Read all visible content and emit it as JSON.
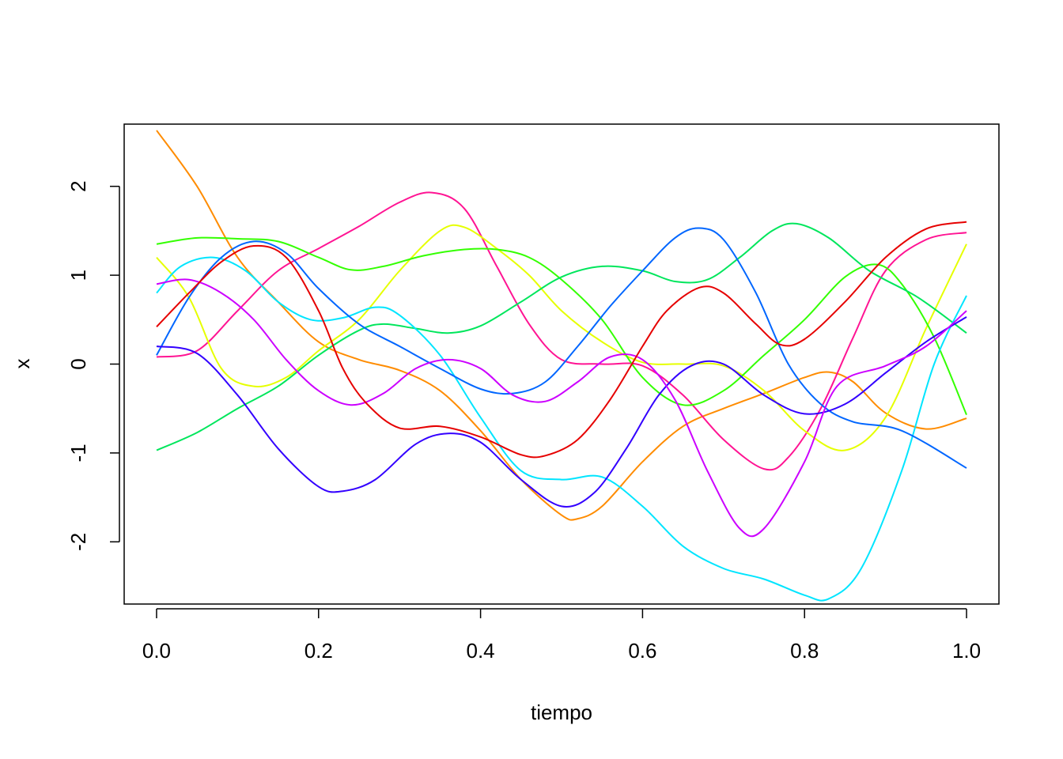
{
  "chart_data": {
    "type": "line",
    "title": "",
    "xlabel": "tiempo",
    "ylabel": "x",
    "xlim": [
      -0.04,
      1.04
    ],
    "ylim": [
      -2.7,
      2.7
    ],
    "x_ticks": [
      0.0,
      0.2,
      0.4,
      0.6,
      0.8,
      1.0
    ],
    "x_tick_labels": [
      "0.0",
      "0.2",
      "0.4",
      "0.6",
      "0.8",
      "1.0"
    ],
    "y_ticks": [
      -2,
      -1,
      0,
      1,
      2
    ],
    "y_tick_labels": [
      "-2",
      "-1",
      "0",
      "1",
      "2"
    ],
    "grid": false,
    "legend": "none",
    "series": [
      {
        "color": "#ff8c00",
        "points": [
          [
            0.0,
            2.63
          ],
          [
            0.05,
            2.0
          ],
          [
            0.1,
            1.2
          ],
          [
            0.15,
            0.7
          ],
          [
            0.2,
            0.25
          ],
          [
            0.25,
            0.05
          ],
          [
            0.3,
            -0.07
          ],
          [
            0.35,
            -0.3
          ],
          [
            0.4,
            -0.75
          ],
          [
            0.45,
            -1.3
          ],
          [
            0.5,
            -1.7
          ],
          [
            0.52,
            -1.74
          ],
          [
            0.55,
            -1.6
          ],
          [
            0.6,
            -1.1
          ],
          [
            0.65,
            -0.7
          ],
          [
            0.7,
            -0.5
          ],
          [
            0.75,
            -0.33
          ],
          [
            0.8,
            -0.15
          ],
          [
            0.83,
            -0.09
          ],
          [
            0.86,
            -0.2
          ],
          [
            0.9,
            -0.55
          ],
          [
            0.95,
            -0.73
          ],
          [
            1.0,
            -0.61
          ]
        ]
      },
      {
        "color": "#ff1493",
        "points": [
          [
            0.0,
            0.08
          ],
          [
            0.05,
            0.15
          ],
          [
            0.1,
            0.6
          ],
          [
            0.15,
            1.05
          ],
          [
            0.2,
            1.3
          ],
          [
            0.25,
            1.55
          ],
          [
            0.3,
            1.82
          ],
          [
            0.34,
            1.93
          ],
          [
            0.38,
            1.75
          ],
          [
            0.42,
            1.1
          ],
          [
            0.46,
            0.45
          ],
          [
            0.5,
            0.05
          ],
          [
            0.55,
            0.0
          ],
          [
            0.6,
            -0.02
          ],
          [
            0.65,
            -0.35
          ],
          [
            0.7,
            -0.85
          ],
          [
            0.75,
            -1.18
          ],
          [
            0.78,
            -1.05
          ],
          [
            0.82,
            -0.5
          ],
          [
            0.86,
            0.3
          ],
          [
            0.9,
            1.05
          ],
          [
            0.95,
            1.4
          ],
          [
            1.0,
            1.48
          ]
        ]
      },
      {
        "color": "#e6ff00",
        "points": [
          [
            0.0,
            1.2
          ],
          [
            0.04,
            0.75
          ],
          [
            0.08,
            -0.05
          ],
          [
            0.12,
            -0.25
          ],
          [
            0.16,
            -0.15
          ],
          [
            0.2,
            0.15
          ],
          [
            0.25,
            0.5
          ],
          [
            0.3,
            1.05
          ],
          [
            0.35,
            1.5
          ],
          [
            0.38,
            1.54
          ],
          [
            0.42,
            1.3
          ],
          [
            0.46,
            1.0
          ],
          [
            0.5,
            0.6
          ],
          [
            0.55,
            0.25
          ],
          [
            0.6,
            0.02
          ],
          [
            0.65,
            0.0
          ],
          [
            0.7,
            -0.02
          ],
          [
            0.75,
            -0.3
          ],
          [
            0.8,
            -0.75
          ],
          [
            0.85,
            -0.97
          ],
          [
            0.9,
            -0.6
          ],
          [
            0.95,
            0.4
          ],
          [
            1.0,
            1.35
          ]
        ]
      },
      {
        "color": "#33ff00",
        "points": [
          [
            0.0,
            1.35
          ],
          [
            0.05,
            1.42
          ],
          [
            0.1,
            1.41
          ],
          [
            0.15,
            1.38
          ],
          [
            0.2,
            1.2
          ],
          [
            0.24,
            1.06
          ],
          [
            0.28,
            1.1
          ],
          [
            0.33,
            1.22
          ],
          [
            0.38,
            1.29
          ],
          [
            0.42,
            1.29
          ],
          [
            0.46,
            1.2
          ],
          [
            0.5,
            0.95
          ],
          [
            0.55,
            0.5
          ],
          [
            0.6,
            -0.15
          ],
          [
            0.65,
            -0.46
          ],
          [
            0.7,
            -0.3
          ],
          [
            0.75,
            0.1
          ],
          [
            0.8,
            0.5
          ],
          [
            0.85,
            0.98
          ],
          [
            0.89,
            1.12
          ],
          [
            0.92,
            0.9
          ],
          [
            0.96,
            0.3
          ],
          [
            1.0,
            -0.57
          ]
        ]
      },
      {
        "color": "#00e65c",
        "points": [
          [
            0.0,
            -0.97
          ],
          [
            0.05,
            -0.77
          ],
          [
            0.1,
            -0.5
          ],
          [
            0.15,
            -0.25
          ],
          [
            0.2,
            0.1
          ],
          [
            0.25,
            0.38
          ],
          [
            0.28,
            0.45
          ],
          [
            0.32,
            0.4
          ],
          [
            0.36,
            0.35
          ],
          [
            0.4,
            0.43
          ],
          [
            0.45,
            0.7
          ],
          [
            0.5,
            0.98
          ],
          [
            0.55,
            1.1
          ],
          [
            0.6,
            1.05
          ],
          [
            0.64,
            0.93
          ],
          [
            0.68,
            0.95
          ],
          [
            0.72,
            1.2
          ],
          [
            0.76,
            1.5
          ],
          [
            0.79,
            1.58
          ],
          [
            0.83,
            1.42
          ],
          [
            0.88,
            1.05
          ],
          [
            0.94,
            0.75
          ],
          [
            1.0,
            0.35
          ]
        ]
      },
      {
        "color": "#00e5ff",
        "points": [
          [
            0.0,
            0.8
          ],
          [
            0.03,
            1.1
          ],
          [
            0.07,
            1.2
          ],
          [
            0.11,
            1.05
          ],
          [
            0.15,
            0.7
          ],
          [
            0.19,
            0.5
          ],
          [
            0.23,
            0.52
          ],
          [
            0.27,
            0.64
          ],
          [
            0.3,
            0.55
          ],
          [
            0.35,
            0.1
          ],
          [
            0.4,
            -0.6
          ],
          [
            0.45,
            -1.2
          ],
          [
            0.5,
            -1.3
          ],
          [
            0.55,
            -1.27
          ],
          [
            0.6,
            -1.6
          ],
          [
            0.65,
            -2.05
          ],
          [
            0.7,
            -2.3
          ],
          [
            0.75,
            -2.42
          ],
          [
            0.8,
            -2.6
          ],
          [
            0.83,
            -2.64
          ],
          [
            0.87,
            -2.3
          ],
          [
            0.92,
            -1.2
          ],
          [
            0.96,
            0.0
          ],
          [
            1.0,
            0.77
          ]
        ]
      },
      {
        "color": "#0066ff",
        "points": [
          [
            0.0,
            0.1
          ],
          [
            0.04,
            0.75
          ],
          [
            0.08,
            1.2
          ],
          [
            0.12,
            1.38
          ],
          [
            0.16,
            1.25
          ],
          [
            0.2,
            0.85
          ],
          [
            0.25,
            0.45
          ],
          [
            0.3,
            0.2
          ],
          [
            0.35,
            -0.05
          ],
          [
            0.4,
            -0.28
          ],
          [
            0.44,
            -0.33
          ],
          [
            0.48,
            -0.2
          ],
          [
            0.52,
            0.2
          ],
          [
            0.56,
            0.65
          ],
          [
            0.6,
            1.05
          ],
          [
            0.64,
            1.42
          ],
          [
            0.67,
            1.53
          ],
          [
            0.7,
            1.4
          ],
          [
            0.74,
            0.8
          ],
          [
            0.78,
            0.0
          ],
          [
            0.82,
            -0.45
          ],
          [
            0.86,
            -0.65
          ],
          [
            0.92,
            -0.75
          ],
          [
            1.0,
            -1.17
          ]
        ]
      },
      {
        "color": "#3300ff",
        "points": [
          [
            0.0,
            0.2
          ],
          [
            0.05,
            0.12
          ],
          [
            0.1,
            -0.35
          ],
          [
            0.15,
            -0.95
          ],
          [
            0.2,
            -1.38
          ],
          [
            0.23,
            -1.43
          ],
          [
            0.27,
            -1.3
          ],
          [
            0.32,
            -0.9
          ],
          [
            0.36,
            -0.78
          ],
          [
            0.4,
            -0.88
          ],
          [
            0.45,
            -1.3
          ],
          [
            0.5,
            -1.6
          ],
          [
            0.54,
            -1.45
          ],
          [
            0.58,
            -0.95
          ],
          [
            0.62,
            -0.35
          ],
          [
            0.66,
            -0.02
          ],
          [
            0.7,
            0.0
          ],
          [
            0.75,
            -0.35
          ],
          [
            0.8,
            -0.56
          ],
          [
            0.85,
            -0.45
          ],
          [
            0.9,
            -0.1
          ],
          [
            0.95,
            0.25
          ],
          [
            1.0,
            0.53
          ]
        ]
      },
      {
        "color": "#cc00ff",
        "points": [
          [
            0.0,
            0.9
          ],
          [
            0.04,
            0.95
          ],
          [
            0.08,
            0.8
          ],
          [
            0.12,
            0.5
          ],
          [
            0.16,
            0.05
          ],
          [
            0.2,
            -0.3
          ],
          [
            0.24,
            -0.46
          ],
          [
            0.28,
            -0.33
          ],
          [
            0.32,
            -0.05
          ],
          [
            0.36,
            0.05
          ],
          [
            0.4,
            -0.05
          ],
          [
            0.44,
            -0.35
          ],
          [
            0.48,
            -0.42
          ],
          [
            0.52,
            -0.2
          ],
          [
            0.56,
            0.08
          ],
          [
            0.6,
            0.05
          ],
          [
            0.64,
            -0.4
          ],
          [
            0.68,
            -1.2
          ],
          [
            0.72,
            -1.85
          ],
          [
            0.75,
            -1.85
          ],
          [
            0.8,
            -1.1
          ],
          [
            0.84,
            -0.25
          ],
          [
            0.9,
            -0.02
          ],
          [
            0.95,
            0.2
          ],
          [
            1.0,
            0.6
          ]
        ]
      },
      {
        "color": "#e60000",
        "points": [
          [
            0.0,
            0.42
          ],
          [
            0.04,
            0.8
          ],
          [
            0.08,
            1.15
          ],
          [
            0.12,
            1.33
          ],
          [
            0.16,
            1.2
          ],
          [
            0.2,
            0.6
          ],
          [
            0.23,
            -0.05
          ],
          [
            0.26,
            -0.45
          ],
          [
            0.3,
            -0.72
          ],
          [
            0.35,
            -0.7
          ],
          [
            0.4,
            -0.82
          ],
          [
            0.45,
            -1.02
          ],
          [
            0.48,
            -1.03
          ],
          [
            0.52,
            -0.85
          ],
          [
            0.56,
            -0.4
          ],
          [
            0.6,
            0.2
          ],
          [
            0.63,
            0.6
          ],
          [
            0.67,
            0.86
          ],
          [
            0.7,
            0.8
          ],
          [
            0.74,
            0.45
          ],
          [
            0.77,
            0.22
          ],
          [
            0.8,
            0.28
          ],
          [
            0.85,
            0.7
          ],
          [
            0.9,
            1.2
          ],
          [
            0.95,
            1.52
          ],
          [
            1.0,
            1.6
          ]
        ]
      }
    ]
  }
}
